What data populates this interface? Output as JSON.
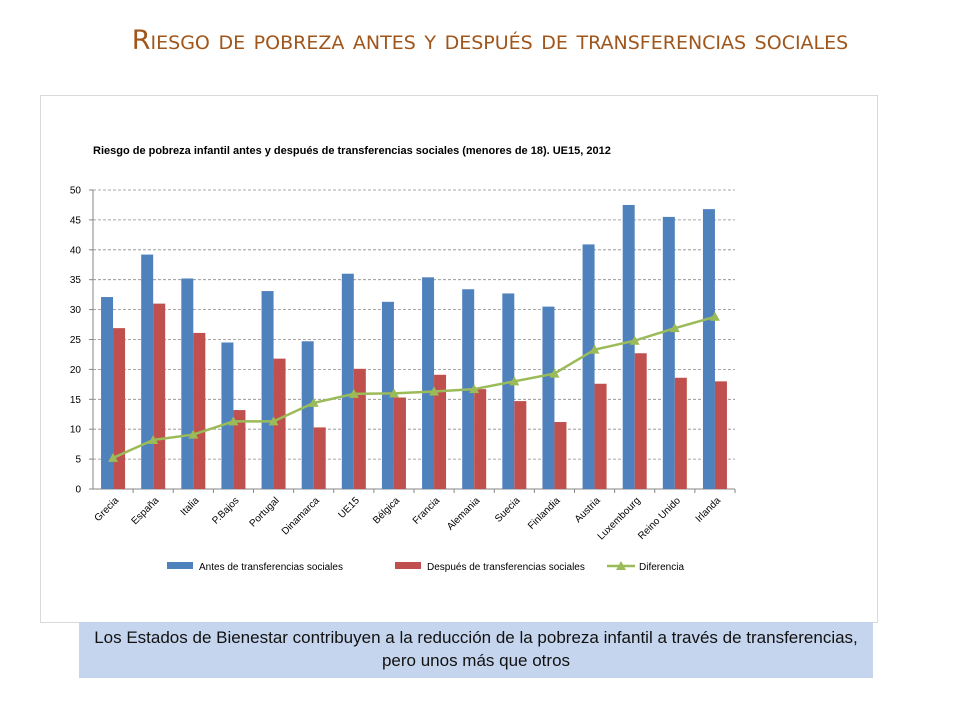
{
  "slide": {
    "title": "Riesgo de pobreza antes y después de transferencias sociales",
    "caption": "Los Estados de Bienestar contribuyen a la reducción de la pobreza infantil a través de transferencias, pero unos más que otros"
  },
  "colors": {
    "before": "#4f81bd",
    "after": "#c0504d",
    "diff": "#9bbb59",
    "title": "#a0561b",
    "caption_bg": "#c5d5ee"
  },
  "chart_data": {
    "type": "bar",
    "title": "Riesgo de pobreza infantil antes y después de transferencias sociales (menores de 18).  UE15, 2012",
    "xlabel": "",
    "ylabel": "",
    "ylim": [
      0,
      50
    ],
    "yticks": [
      0,
      5,
      10,
      15,
      20,
      25,
      30,
      35,
      40,
      45,
      50
    ],
    "grid": true,
    "legend_position": "bottom",
    "categories": [
      "Grecia",
      "España",
      "Italia",
      "P.Bajos",
      "Portugal",
      "Dinamarca",
      "UE15",
      "Bélgica",
      "Francia",
      "Alemania",
      "Suecia",
      "Finlandia",
      "Austria",
      "Luxembourg",
      "Reino Unido",
      "Irlanda"
    ],
    "series": [
      {
        "name": "Antes de transferencias sociales",
        "type": "bar",
        "values": [
          32.1,
          39.2,
          35.2,
          24.5,
          33.1,
          24.7,
          36.0,
          31.3,
          35.4,
          33.4,
          32.7,
          30.5,
          40.9,
          47.5,
          45.5,
          46.8
        ]
      },
      {
        "name": "Después de transferencias sociales",
        "type": "bar",
        "values": [
          26.9,
          31.0,
          26.1,
          13.2,
          21.8,
          10.3,
          20.1,
          15.3,
          19.1,
          16.7,
          14.7,
          11.2,
          17.6,
          22.7,
          18.6,
          18.0
        ]
      },
      {
        "name": "Diferencia",
        "type": "line",
        "values": [
          5.2,
          8.2,
          9.1,
          11.3,
          11.3,
          14.4,
          15.9,
          16.0,
          16.3,
          16.7,
          18.0,
          19.3,
          23.3,
          24.8,
          26.9,
          28.8
        ]
      }
    ]
  }
}
